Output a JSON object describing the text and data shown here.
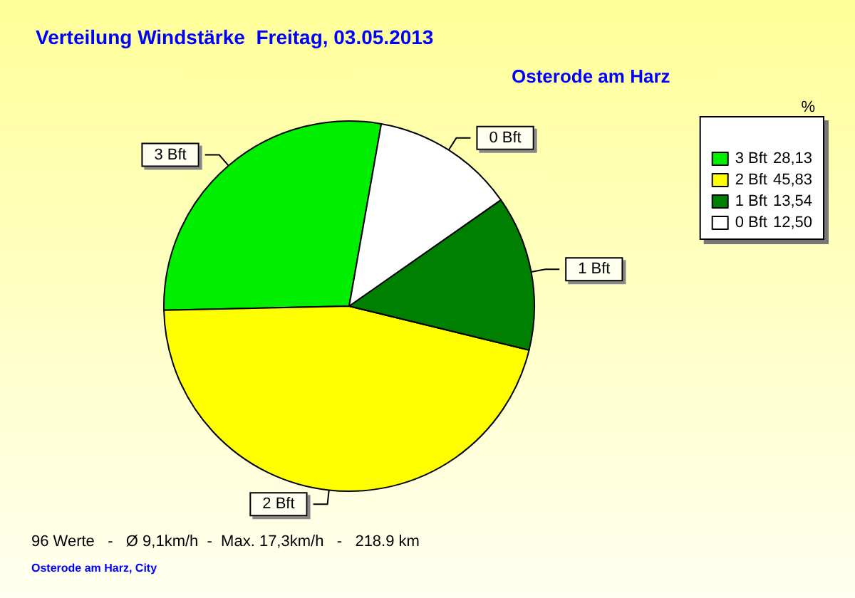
{
  "chart_data": {
    "type": "pie",
    "title": "Verteilung Windstärke  Freitag, 03.05.2013",
    "subtitle": "Osterode am Harz",
    "legend_title": "%",
    "legend": "top right",
    "categories": [
      "3 Bft",
      "2 Bft",
      "1 Bft",
      "0 Bft"
    ],
    "values": [
      28.13,
      45.83,
      13.54,
      12.5
    ],
    "value_labels": [
      "28,13",
      "45,83",
      "13,54",
      "12,50"
    ],
    "colors": [
      "#00ee00",
      "#ffff00",
      "#008000",
      "#ffffff"
    ],
    "annotations": [
      "96 Werte   -   Ø 9,1km/h  -  Max. 17,3km/h   -   218.9 km",
      "Osterode am Harz, City"
    ]
  }
}
